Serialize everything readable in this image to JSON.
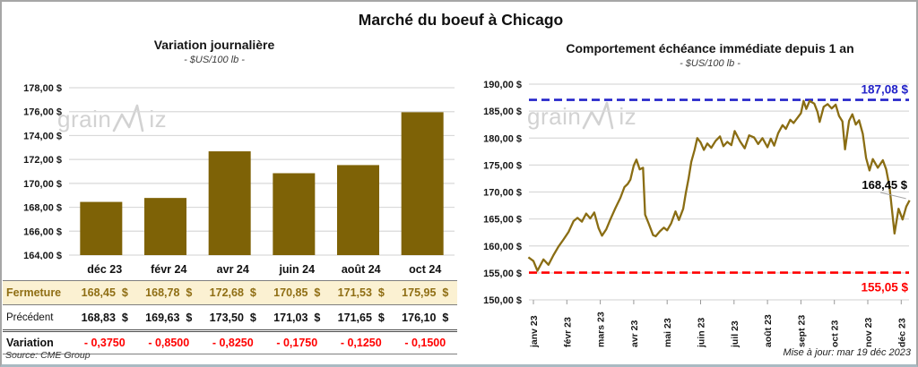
{
  "title": "Marché du boeuf à Chicago",
  "watermark": {
    "part1": "grain",
    "part2": "iz"
  },
  "source": "Source: CME Group",
  "updated": "Mise à jour: mar 19 déc 2023",
  "chart_data": [
    {
      "type": "bar",
      "title": "Variation journalière",
      "subtitle": "- $US/100 lb -",
      "categories": [
        "déc 23",
        "févr 24",
        "avr 24",
        "juin 24",
        "août 24",
        "oct 24"
      ],
      "values": [
        168.45,
        168.78,
        172.68,
        170.85,
        171.53,
        175.95
      ],
      "ylabel": "$US/100 lb",
      "ylim": [
        164,
        178
      ],
      "ytick_step": 2,
      "ytick_labels": [
        "178,00 $",
        "176,00 $",
        "174,00 $",
        "172,00 $",
        "170,00 $",
        "168,00 $",
        "166,00 $",
        "164,00 $"
      ],
      "bar_color": "#7e6206",
      "grid": true,
      "legend": "none"
    },
    {
      "type": "line",
      "title": "Comportement échéance immédiate depuis 1 an",
      "subtitle": "- $US/100 lb -",
      "ylabel": "$US/100 lb",
      "x_tick_labels": [
        "janv 23",
        "févr 23",
        "mars 23",
        "avr 23",
        "mai 23",
        "juin 23",
        "juil 23",
        "août 23",
        "sept 23",
        "oct 23",
        "nov 23",
        "déc 23"
      ],
      "ylim": [
        150,
        190
      ],
      "ytick_step": 5,
      "ytick_labels": [
        "190,00 $",
        "185,00 $",
        "180,00 $",
        "175,00 $",
        "170,00 $",
        "165,00 $",
        "160,00 $",
        "155,00 $",
        "150,00 $"
      ],
      "line_color": "#8a6d13",
      "grid": true,
      "legend": "none",
      "series": [
        {
          "name": "échéance immédiate",
          "points": [
            [
              -0.15,
              157.9
            ],
            [
              0.0,
              157.2
            ],
            [
              0.12,
              155.4
            ],
            [
              0.3,
              157.5
            ],
            [
              0.45,
              156.5
            ],
            [
              0.6,
              158.3
            ],
            [
              0.75,
              159.9
            ],
            [
              0.9,
              161.2
            ],
            [
              1.05,
              162.6
            ],
            [
              1.2,
              164.6
            ],
            [
              1.32,
              165.2
            ],
            [
              1.45,
              164.5
            ],
            [
              1.58,
              166.0
            ],
            [
              1.7,
              165.1
            ],
            [
              1.82,
              166.2
            ],
            [
              1.95,
              163.3
            ],
            [
              2.05,
              161.9
            ],
            [
              2.18,
              163.1
            ],
            [
              2.3,
              164.9
            ],
            [
              2.45,
              167.0
            ],
            [
              2.6,
              168.9
            ],
            [
              2.72,
              170.9
            ],
            [
              2.82,
              171.5
            ],
            [
              2.9,
              172.3
            ],
            [
              3.0,
              174.9
            ],
            [
              3.08,
              176.0
            ],
            [
              3.18,
              174.2
            ],
            [
              3.28,
              174.5
            ],
            [
              3.34,
              165.8
            ],
            [
              3.45,
              164.1
            ],
            [
              3.58,
              162.0
            ],
            [
              3.66,
              161.8
            ],
            [
              3.78,
              162.7
            ],
            [
              3.9,
              163.4
            ],
            [
              4.0,
              162.9
            ],
            [
              4.12,
              164.2
            ],
            [
              4.25,
              166.4
            ],
            [
              4.35,
              164.8
            ],
            [
              4.48,
              166.9
            ],
            [
              4.56,
              169.9
            ],
            [
              4.64,
              172.5
            ],
            [
              4.72,
              175.6
            ],
            [
              4.82,
              177.8
            ],
            [
              4.9,
              180.0
            ],
            [
              5.0,
              179.2
            ],
            [
              5.1,
              177.8
            ],
            [
              5.2,
              179.0
            ],
            [
              5.32,
              178.2
            ],
            [
              5.45,
              179.5
            ],
            [
              5.58,
              180.3
            ],
            [
              5.68,
              178.5
            ],
            [
              5.8,
              179.3
            ],
            [
              5.92,
              178.7
            ],
            [
              6.02,
              181.3
            ],
            [
              6.18,
              179.4
            ],
            [
              6.32,
              178.1
            ],
            [
              6.45,
              180.5
            ],
            [
              6.6,
              180.1
            ],
            [
              6.72,
              178.9
            ],
            [
              6.85,
              180.0
            ],
            [
              7.0,
              178.3
            ],
            [
              7.1,
              179.9
            ],
            [
              7.2,
              178.6
            ],
            [
              7.32,
              180.9
            ],
            [
              7.45,
              182.4
            ],
            [
              7.55,
              181.7
            ],
            [
              7.68,
              183.4
            ],
            [
              7.78,
              182.8
            ],
            [
              7.9,
              183.8
            ],
            [
              8.0,
              184.6
            ],
            [
              8.08,
              186.9
            ],
            [
              8.16,
              185.4
            ],
            [
              8.26,
              186.9
            ],
            [
              8.4,
              186.4
            ],
            [
              8.5,
              184.8
            ],
            [
              8.56,
              183.0
            ],
            [
              8.68,
              185.8
            ],
            [
              8.8,
              186.3
            ],
            [
              8.92,
              185.5
            ],
            [
              9.04,
              186.2
            ],
            [
              9.14,
              184.1
            ],
            [
              9.24,
              183.1
            ],
            [
              9.32,
              177.9
            ],
            [
              9.44,
              183.2
            ],
            [
              9.54,
              184.4
            ],
            [
              9.64,
              182.5
            ],
            [
              9.74,
              183.3
            ],
            [
              9.85,
              180.8
            ],
            [
              9.95,
              176.3
            ],
            [
              10.05,
              174.0
            ],
            [
              10.15,
              176.1
            ],
            [
              10.3,
              174.5
            ],
            [
              10.45,
              175.9
            ],
            [
              10.55,
              174.2
            ],
            [
              10.65,
              171.0
            ],
            [
              10.8,
              162.3
            ],
            [
              10.92,
              166.9
            ],
            [
              11.04,
              164.9
            ],
            [
              11.15,
              167.3
            ],
            [
              11.25,
              168.45
            ]
          ]
        }
      ],
      "ref_lines": [
        {
          "value": 187.08,
          "label": "187,08 $",
          "color": "#2323c9",
          "style": "dashed",
          "label_side": "above"
        },
        {
          "value": 155.05,
          "label": "155,05 $",
          "color": "#ff0000",
          "style": "dashed",
          "label_side": "below"
        }
      ],
      "end_label": "168,45 $"
    }
  ],
  "table": {
    "columns": [
      "déc 23",
      "févr 24",
      "avr 24",
      "juin 24",
      "août 24",
      "oct 24"
    ],
    "rows": [
      {
        "label": "Fermeture",
        "style": "close-row",
        "values": [
          "168,45  $",
          "168,78  $",
          "172,68  $",
          "170,85  $",
          "171,53  $",
          "175,95  $"
        ]
      },
      {
        "label": "Précédent",
        "style": "prev-row",
        "values": [
          "168,83  $",
          "169,63  $",
          "173,50  $",
          "171,03  $",
          "171,65  $",
          "176,10  $"
        ]
      },
      {
        "label": "Variation",
        "style": "var-row",
        "values": [
          "- 0,3750",
          "- 0,8500",
          "- 0,8250",
          "- 0,1750",
          "- 0,1250",
          "- 0,1500"
        ]
      }
    ]
  }
}
